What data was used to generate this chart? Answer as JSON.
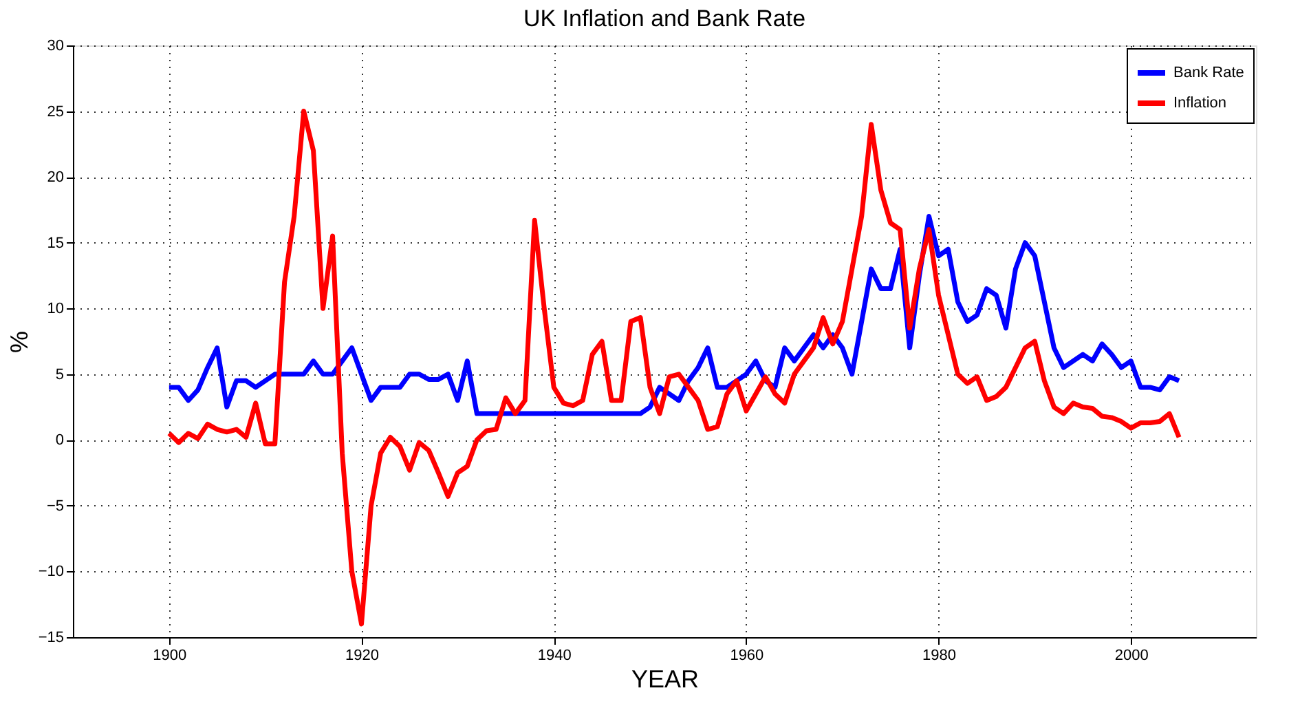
{
  "chart_data": {
    "type": "line",
    "title": "UK Inflation and Bank Rate",
    "xlabel": "YEAR",
    "ylabel": "%",
    "x": [
      1900,
      1901,
      1902,
      1903,
      1904,
      1905,
      1906,
      1907,
      1908,
      1909,
      1910,
      1911,
      1912,
      1913,
      1914,
      1915,
      1916,
      1917,
      1918,
      1919,
      1920,
      1921,
      1922,
      1923,
      1924,
      1925,
      1926,
      1927,
      1928,
      1929,
      1930,
      1931,
      1932,
      1933,
      1934,
      1935,
      1936,
      1937,
      1938,
      1939,
      1940,
      1941,
      1942,
      1943,
      1944,
      1945,
      1946,
      1947,
      1948,
      1949,
      1950,
      1951,
      1952,
      1953,
      1954,
      1955,
      1956,
      1957,
      1958,
      1959,
      1960,
      1961,
      1962,
      1963,
      1964,
      1965,
      1966,
      1967,
      1968,
      1969,
      1970,
      1971,
      1972,
      1973,
      1974,
      1975,
      1976,
      1977,
      1978,
      1979,
      1980,
      1981,
      1982,
      1983,
      1984,
      1985,
      1986,
      1987,
      1988,
      1989,
      1990,
      1991,
      1992,
      1993,
      1994,
      1995,
      1996,
      1997,
      1998,
      1999,
      2000,
      2001,
      2002,
      2003,
      2004,
      2005
    ],
    "series": [
      {
        "name": "Bank Rate",
        "color": "#0000ff",
        "values": [
          4,
          4,
          3,
          3.8,
          5.5,
          7,
          2.5,
          4.5,
          4.5,
          4,
          4.5,
          5,
          5,
          5,
          5,
          6,
          5,
          5,
          6,
          7,
          5,
          3,
          4,
          4,
          4,
          5,
          5,
          4.6,
          4.6,
          5,
          3,
          6,
          2,
          2,
          2,
          2,
          2,
          2,
          2,
          2,
          2,
          2,
          2,
          2,
          2,
          2,
          2,
          2,
          2,
          2,
          2.5,
          4,
          3.5,
          3,
          4.5,
          5.5,
          7,
          4,
          4,
          4.5,
          5,
          6,
          4.5,
          4,
          7,
          6,
          7,
          8,
          7,
          8,
          7,
          5,
          9,
          13,
          11.5,
          11.5,
          14.5,
          7,
          12.5,
          17,
          14,
          14.5,
          10.5,
          9,
          9.5,
          11.5,
          11,
          8.5,
          13,
          15,
          14,
          10.5,
          7,
          5.5,
          6,
          6.5,
          6,
          7.3,
          6.5,
          5.5,
          6,
          4,
          4,
          3.8,
          4.8,
          4.5
        ]
      },
      {
        "name": "Inflation",
        "color": "#ff0000",
        "values": [
          0.5,
          -0.2,
          0.5,
          0.1,
          1.2,
          0.8,
          0.6,
          0.8,
          0.2,
          2.8,
          -0.3,
          -0.3,
          12,
          17,
          25,
          22,
          10,
          15.5,
          -1,
          -10,
          -14,
          -5,
          -1,
          0.2,
          -0.5,
          -2.3,
          -0.2,
          -0.8,
          -2.5,
          -4.3,
          -2.5,
          -2,
          0,
          0.7,
          0.8,
          3.2,
          2,
          3,
          16.7,
          10,
          4,
          2.8,
          2.6,
          3,
          6.5,
          7.5,
          3,
          3,
          9,
          9.3,
          4,
          2,
          4.8,
          5,
          4,
          3,
          0.8,
          1,
          3.5,
          4.5,
          2.2,
          3.5,
          4.8,
          3.5,
          2.8,
          5,
          6,
          7,
          9.3,
          7.3,
          9,
          13,
          17,
          24,
          19,
          16.5,
          16,
          8.5,
          13,
          16,
          11,
          8,
          5,
          4.3,
          4.8,
          3,
          3.3,
          4,
          5.5,
          7,
          7.5,
          4.5,
          2.5,
          2,
          2.8,
          2.5,
          2.4,
          1.8,
          1.7,
          1.4,
          0.9,
          1.3,
          1.3,
          1.4,
          2,
          0.2
        ]
      }
    ],
    "xlim": [
      1890,
      2013
    ],
    "xticks": [
      1900,
      1920,
      1940,
      1960,
      1980,
      2000
    ],
    "ylim": [
      -15,
      30
    ],
    "yticks": [
      -15,
      -10,
      -5,
      0,
      5,
      10,
      15,
      20,
      25,
      30
    ],
    "grid": true,
    "legend": "top right",
    "marker": "none",
    "line_style": "solid"
  }
}
